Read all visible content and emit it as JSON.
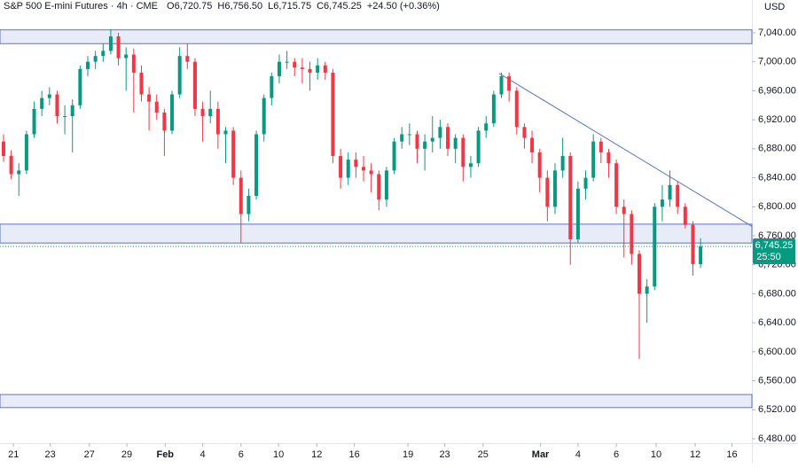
{
  "chart_data": {
    "type": "candlestick",
    "title": "S&P 500 E-mini Futures · 4h · CME",
    "ohlc_labels": [
      "O6,720.75",
      "H6,756.50",
      "L6,715.75",
      "C6,745.25"
    ],
    "change_label": "+24.50 (+0.36%)",
    "currency": "USD",
    "last_price_label": "6,745.25",
    "countdown": "25:50",
    "last_price": 6745.25,
    "up_color": "#089981",
    "down_color": "#f23645",
    "open": [
      6890,
      6870,
      6845,
      6850,
      6900,
      6935,
      6950,
      6955,
      6925,
      6925,
      6940,
      6990,
      7000,
      7008,
      7015,
      7035,
      7005,
      7010,
      6985,
      6955,
      6945,
      6930,
      6905,
      6955,
      7008,
      7000,
      6935,
      6925,
      6935,
      6900,
      6905,
      6840,
      6790,
      6815,
      6900,
      6950,
      6980,
      7000,
      7000,
      6992,
      6990,
      6985,
      6995,
      6985,
      6870,
      6840,
      6865,
      6855,
      6850,
      6845,
      6810,
      6850,
      6890,
      6900,
      6900,
      6880,
      6890,
      6895,
      6910,
      6880,
      6895,
      6855,
      6860,
      6905,
      6915,
      6955,
      6980,
      6960,
      6910,
      6895,
      6875,
      6840,
      6800,
      6850,
      6870,
      6755,
      6825,
      6840,
      6890,
      6875,
      6860,
      6800,
      6790,
      6735,
      6680,
      6690,
      6800,
      6810,
      6830,
      6800,
      6775,
      6720.75
    ],
    "high": [
      6900,
      6878,
      6860,
      6905,
      6945,
      6960,
      6965,
      6960,
      6940,
      6948,
      6995,
      7008,
      7015,
      7025,
      7045,
      7040,
      7020,
      7018,
      6995,
      6965,
      6955,
      6935,
      6960,
      7020,
      7025,
      7005,
      6945,
      6960,
      6945,
      6910,
      6910,
      6850,
      6825,
      6905,
      6955,
      6985,
      7010,
      7015,
      7005,
      7005,
      7000,
      7005,
      7000,
      6990,
      6880,
      6875,
      6875,
      6870,
      6860,
      6850,
      6855,
      6895,
      6910,
      6915,
      6905,
      6900,
      6925,
      6920,
      6915,
      6900,
      6900,
      6870,
      6910,
      6925,
      6960,
      6985,
      6985,
      6965,
      6915,
      6905,
      6880,
      6850,
      6860,
      6895,
      6875,
      6835,
      6850,
      6900,
      6895,
      6880,
      6865,
      6810,
      6795,
      6740,
      6700,
      6805,
      6830,
      6850,
      6835,
      6805,
      6780,
      6756.5
    ],
    "low": [
      6862,
      6838,
      6815,
      6845,
      6895,
      6925,
      6940,
      6915,
      6900,
      6875,
      6935,
      6980,
      6990,
      7000,
      7010,
      6995,
      6960,
      6930,
      6945,
      6905,
      6920,
      6870,
      6900,
      6950,
      6990,
      6925,
      6890,
      6915,
      6880,
      6860,
      6830,
      6750,
      6780,
      6810,
      6890,
      6940,
      6970,
      6990,
      6980,
      6970,
      6960,
      6975,
      6975,
      6860,
      6825,
      6830,
      6840,
      6835,
      6820,
      6795,
      6800,
      6845,
      6880,
      6885,
      6860,
      6850,
      6875,
      6880,
      6870,
      6860,
      6835,
      6840,
      6855,
      6895,
      6910,
      6950,
      6945,
      6900,
      6880,
      6860,
      6820,
      6780,
      6790,
      6840,
      6720,
      6750,
      6810,
      6835,
      6860,
      6840,
      6790,
      6730,
      6720,
      6590,
      6640,
      6685,
      6780,
      6800,
      6790,
      6770,
      6705,
      6715.75
    ],
    "close": [
      6870,
      6845,
      6850,
      6900,
      6935,
      6950,
      6955,
      6925,
      6925,
      6940,
      6990,
      7000,
      7008,
      7015,
      7035,
      7005,
      7010,
      6985,
      6955,
      6945,
      6930,
      6905,
      6955,
      7008,
      7000,
      6935,
      6925,
      6935,
      6900,
      6905,
      6840,
      6790,
      6815,
      6900,
      6950,
      6980,
      7000,
      7000,
      6992,
      6990,
      6985,
      6995,
      6985,
      6870,
      6840,
      6865,
      6855,
      6850,
      6845,
      6810,
      6850,
      6890,
      6900,
      6900,
      6880,
      6890,
      6895,
      6910,
      6880,
      6895,
      6855,
      6860,
      6905,
      6915,
      6955,
      6980,
      6960,
      6910,
      6895,
      6875,
      6840,
      6800,
      6850,
      6870,
      6755,
      6825,
      6840,
      6890,
      6875,
      6860,
      6800,
      6790,
      6735,
      6680,
      6690,
      6800,
      6810,
      6830,
      6800,
      6775,
      6720.75,
      6745.25
    ],
    "xlim": [
      -0.46,
      97.7
    ],
    "xticks": [
      {
        "value": 1.3,
        "label": "21"
      },
      {
        "value": 6.1,
        "label": "23"
      },
      {
        "value": 11.2,
        "label": "27"
      },
      {
        "value": 16.1,
        "label": "29"
      },
      {
        "value": 21.1,
        "label": "Feb"
      },
      {
        "value": 26.0,
        "label": "4"
      },
      {
        "value": 31.0,
        "label": "6"
      },
      {
        "value": 35.9,
        "label": "10"
      },
      {
        "value": 40.9,
        "label": "12"
      },
      {
        "value": 45.8,
        "label": "16"
      },
      {
        "value": 52.8,
        "label": "19"
      },
      {
        "value": 57.6,
        "label": "23"
      },
      {
        "value": 62.6,
        "label": "25"
      },
      {
        "value": 70.1,
        "label": "Mar"
      },
      {
        "value": 75.0,
        "label": "4"
      },
      {
        "value": 80.0,
        "label": "6"
      },
      {
        "value": 85.2,
        "label": "10"
      },
      {
        "value": 90.3,
        "label": "12"
      },
      {
        "value": 95.1,
        "label": "16"
      }
    ],
    "ylim": [
      6473.9,
      7085.2
    ],
    "yticks": [
      {
        "value": 6480,
        "label": "6,480.00"
      },
      {
        "value": 6520,
        "label": "6,520.00"
      },
      {
        "value": 6560,
        "label": "6,560.00"
      },
      {
        "value": 6600,
        "label": "6,600.00"
      },
      {
        "value": 6640,
        "label": "6,640.00"
      },
      {
        "value": 6680,
        "label": "6,680.00"
      },
      {
        "value": 6720,
        "label": "6,720.00"
      },
      {
        "value": 6760,
        "label": "6,760.00"
      },
      {
        "value": 6800,
        "label": "6,800.00"
      },
      {
        "value": 6840,
        "label": "6,840.00"
      },
      {
        "value": 6880,
        "label": "6,880.00"
      },
      {
        "value": 6920,
        "label": "6,920.00"
      },
      {
        "value": 6960,
        "label": "6,960.00"
      },
      {
        "value": 7000,
        "label": "7,000.00"
      },
      {
        "value": 7040,
        "label": "7,040.00"
      }
    ],
    "zones": [
      {
        "low": 7025,
        "high": 7044
      },
      {
        "low": 6750,
        "high": 6776
      },
      {
        "low": 6523,
        "high": 6541
      }
    ],
    "trendline": {
      "x": [
        64.7,
        97.7
      ],
      "y": [
        6984,
        6773
      ]
    },
    "zone_color": "#e8ecf8",
    "line_color": "#5a74c2"
  }
}
